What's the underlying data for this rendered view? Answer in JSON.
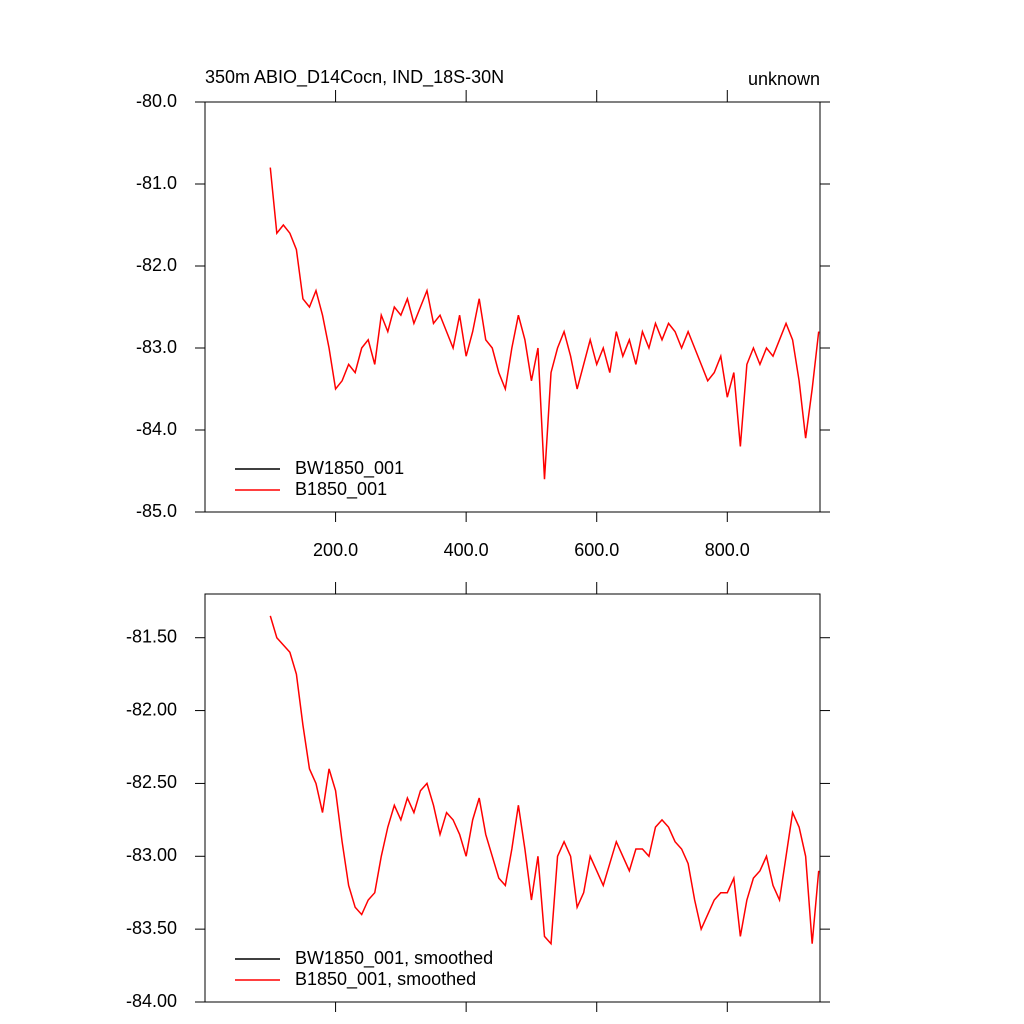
{
  "chart_data": [
    {
      "type": "line",
      "title": "350m ABIO_D14Cocn, IND_18S-30N",
      "right_title": "unknown",
      "x": [
        100,
        110,
        120,
        130,
        140,
        150,
        160,
        170,
        180,
        190,
        200,
        210,
        220,
        230,
        240,
        250,
        260,
        270,
        280,
        290,
        300,
        310,
        320,
        330,
        340,
        350,
        360,
        370,
        380,
        390,
        400,
        410,
        420,
        430,
        440,
        450,
        460,
        470,
        480,
        490,
        500,
        510,
        520,
        530,
        540,
        550,
        560,
        570,
        580,
        590,
        600,
        610,
        620,
        630,
        640,
        650,
        660,
        670,
        680,
        690,
        700,
        710,
        720,
        730,
        740,
        750,
        760,
        770,
        780,
        790,
        800,
        810,
        820,
        830,
        840,
        850,
        860,
        870,
        880,
        890,
        900,
        910,
        920,
        930,
        940
      ],
      "series": [
        {
          "name": "BW1850_001",
          "color": "#000000",
          "values": [
            null,
            null,
            null,
            null,
            null,
            null,
            null,
            null,
            null,
            null,
            null,
            null,
            null,
            null,
            null,
            null,
            null,
            null,
            null,
            null,
            null,
            null,
            null,
            null,
            null,
            null,
            null,
            null,
            null,
            null,
            null,
            null,
            null,
            null,
            null,
            null,
            null,
            null,
            null,
            null,
            null,
            null,
            null,
            null,
            null,
            null,
            null,
            null,
            null,
            null,
            null,
            null,
            null,
            null,
            null,
            null,
            null,
            null,
            null,
            null,
            null,
            null,
            null,
            null,
            null,
            null,
            null,
            null,
            null,
            null,
            null,
            null,
            null,
            null,
            null,
            null,
            null,
            null,
            null,
            null,
            null,
            null,
            null,
            null,
            null
          ]
        },
        {
          "name": "B1850_001",
          "color": "#ff0000",
          "values": [
            -80.8,
            -81.6,
            -81.5,
            -81.6,
            -81.8,
            -82.4,
            -82.5,
            -82.3,
            -82.6,
            -83.0,
            -83.5,
            -83.4,
            -83.2,
            -83.3,
            -83.0,
            -82.9,
            -83.2,
            -82.6,
            -82.8,
            -82.5,
            -82.6,
            -82.4,
            -82.7,
            -82.5,
            -82.3,
            -82.7,
            -82.6,
            -82.8,
            -83.0,
            -82.6,
            -83.1,
            -82.8,
            -82.4,
            -82.9,
            -83.0,
            -83.3,
            -83.5,
            -83.0,
            -82.6,
            -82.9,
            -83.4,
            -83.0,
            -84.6,
            -83.3,
            -83.0,
            -82.8,
            -83.1,
            -83.5,
            -83.2,
            -82.9,
            -83.2,
            -83.0,
            -83.3,
            -82.8,
            -83.1,
            -82.9,
            -83.2,
            -82.8,
            -83.0,
            -82.7,
            -82.9,
            -82.7,
            -82.8,
            -83.0,
            -82.8,
            -83.0,
            -83.2,
            -83.4,
            -83.3,
            -83.1,
            -83.6,
            -83.3,
            -84.2,
            -83.2,
            -83.0,
            -83.2,
            -83.0,
            -83.1,
            -82.9,
            -82.7,
            -82.9,
            -83.4,
            -84.1,
            -83.5,
            -82.8
          ]
        }
      ],
      "xlim": [
        0,
        942
      ],
      "xticks": [
        {
          "value": 200,
          "label": "200.0"
        },
        {
          "value": 400,
          "label": "400.0"
        },
        {
          "value": 600,
          "label": "600.0"
        },
        {
          "value": 800,
          "label": "800.0"
        }
      ],
      "ylim": [
        -85,
        -80
      ],
      "yticks": [
        {
          "value": -80,
          "label": "-80.0"
        },
        {
          "value": -81,
          "label": "-81.0"
        },
        {
          "value": -82,
          "label": "-82.0"
        },
        {
          "value": -83,
          "label": "-83.0"
        },
        {
          "value": -84,
          "label": "-84.0"
        },
        {
          "value": -85,
          "label": "-85.0"
        }
      ],
      "legend": "lower left"
    },
    {
      "type": "line",
      "x": [
        100,
        110,
        120,
        130,
        140,
        150,
        160,
        170,
        180,
        190,
        200,
        210,
        220,
        230,
        240,
        250,
        260,
        270,
        280,
        290,
        300,
        310,
        320,
        330,
        340,
        350,
        360,
        370,
        380,
        390,
        400,
        410,
        420,
        430,
        440,
        450,
        460,
        470,
        480,
        490,
        500,
        510,
        520,
        530,
        540,
        550,
        560,
        570,
        580,
        590,
        600,
        610,
        620,
        630,
        640,
        650,
        660,
        670,
        680,
        690,
        700,
        710,
        720,
        730,
        740,
        750,
        760,
        770,
        780,
        790,
        800,
        810,
        820,
        830,
        840,
        850,
        860,
        870,
        880,
        890,
        900,
        910,
        920,
        930,
        940
      ],
      "series": [
        {
          "name": "BW1850_001, smoothed",
          "color": "#000000",
          "values": [
            null,
            null,
            null,
            null,
            null,
            null,
            null,
            null,
            null,
            null,
            null,
            null,
            null,
            null,
            null,
            null,
            null,
            null,
            null,
            null,
            null,
            null,
            null,
            null,
            null,
            null,
            null,
            null,
            null,
            null,
            null,
            null,
            null,
            null,
            null,
            null,
            null,
            null,
            null,
            null,
            null,
            null,
            null,
            null,
            null,
            null,
            null,
            null,
            null,
            null,
            null,
            null,
            null,
            null,
            null,
            null,
            null,
            null,
            null,
            null,
            null,
            null,
            null,
            null,
            null,
            null,
            null,
            null,
            null,
            null,
            null,
            null,
            null,
            null,
            null,
            null,
            null,
            null,
            null,
            null,
            null,
            null,
            null,
            null,
            null
          ]
        },
        {
          "name": "B1850_001, smoothed",
          "color": "#ff0000",
          "values": [
            -81.35,
            -81.5,
            -81.55,
            -81.6,
            -81.75,
            -82.1,
            -82.4,
            -82.5,
            -82.7,
            -82.4,
            -82.55,
            -82.9,
            -83.2,
            -83.35,
            -83.4,
            -83.3,
            -83.25,
            -83.0,
            -82.8,
            -82.65,
            -82.75,
            -82.6,
            -82.7,
            -82.55,
            -82.5,
            -82.65,
            -82.85,
            -82.7,
            -82.75,
            -82.85,
            -83.0,
            -82.75,
            -82.6,
            -82.85,
            -83.0,
            -83.15,
            -83.2,
            -82.95,
            -82.65,
            -82.95,
            -83.3,
            -83.0,
            -83.55,
            -83.6,
            -83.0,
            -82.9,
            -83.0,
            -83.35,
            -83.25,
            -83.0,
            -83.1,
            -83.2,
            -83.05,
            -82.9,
            -83.0,
            -83.1,
            -82.95,
            -82.95,
            -83.0,
            -82.8,
            -82.75,
            -82.8,
            -82.9,
            -82.95,
            -83.05,
            -83.3,
            -83.5,
            -83.4,
            -83.3,
            -83.25,
            -83.25,
            -83.15,
            -83.55,
            -83.3,
            -83.15,
            -83.1,
            -83.0,
            -83.2,
            -83.3,
            -83.0,
            -82.7,
            -82.8,
            -83.0,
            -83.6,
            -83.1
          ]
        }
      ],
      "xlim": [
        0,
        942
      ],
      "ylim": [
        -84,
        -81.2
      ],
      "yticks": [
        {
          "value": -81.5,
          "label": "-81.50"
        },
        {
          "value": -82,
          "label": "-82.00"
        },
        {
          "value": -82.5,
          "label": "-82.50"
        },
        {
          "value": -83,
          "label": "-83.00"
        },
        {
          "value": -83.5,
          "label": "-83.50"
        },
        {
          "value": -84,
          "label": "-84.00"
        }
      ],
      "legend": "lower left"
    }
  ]
}
